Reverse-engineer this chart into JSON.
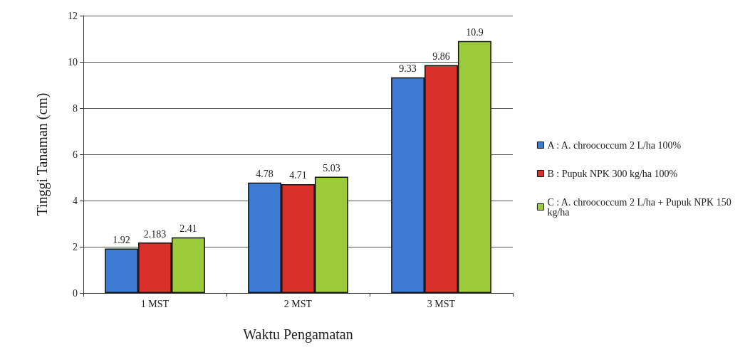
{
  "chart_data": {
    "type": "bar",
    "xlabel": "Waktu Pengamatan",
    "ylabel": "Tinggi Tanaman (cm)",
    "categories": [
      "1 MST",
      "2 MST",
      "3 MST"
    ],
    "series": [
      {
        "name": "A : A. chroococcum 2 L/ha 100%",
        "color": "#3b7bd4",
        "values": [
          1.92,
          4.78,
          9.33
        ]
      },
      {
        "name": "B : Pupuk NPK 300 kg/ha 100%",
        "color": "#d9302c",
        "values": [
          2.183,
          4.71,
          9.86
        ]
      },
      {
        "name": "C : A. chroococcum 2 L/ha + Pupuk NPK 150 kg/ha",
        "color": "#9ccc3c",
        "values": [
          2.41,
          5.03,
          10.9
        ]
      }
    ],
    "ylim": [
      0,
      12
    ],
    "yticks": [
      0,
      2,
      4,
      6,
      8,
      10,
      12
    ],
    "grid": "y",
    "legend": "right",
    "data_labels": true
  }
}
